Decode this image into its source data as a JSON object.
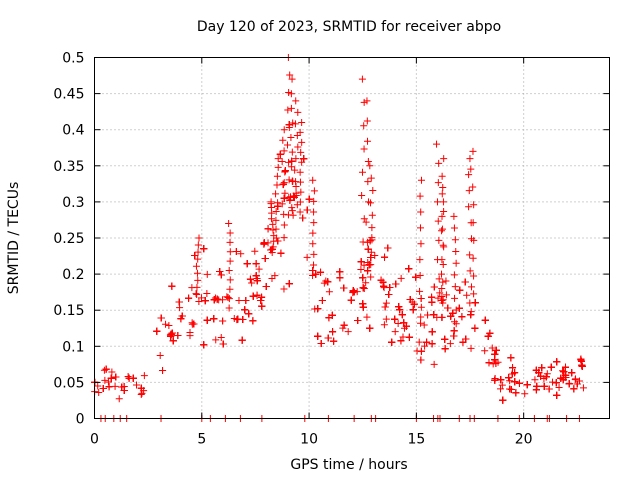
{
  "chart_data": {
    "type": "scatter",
    "title": "Day 120 of 2023, SRMTID for receiver abpo",
    "xlabel": "GPS time / hours",
    "ylabel": "SRMTID / TECUs",
    "xlim": [
      0,
      24
    ],
    "ylim": [
      0,
      0.5
    ],
    "xticks": [
      0,
      5,
      10,
      15,
      20
    ],
    "yticks": [
      0,
      0.05,
      0.1,
      0.15,
      0.2,
      0.25,
      0.3,
      0.35,
      0.4,
      0.45,
      0.5
    ],
    "ytick_labels": [
      "0",
      "0.05",
      "0.1",
      "0.15",
      "0.2",
      "0.25",
      "0.3",
      "0.35",
      "0.4",
      "0.45",
      "0.5"
    ],
    "xtick_labels": [
      "0",
      "5",
      "10",
      "15",
      "20"
    ],
    "grid": true,
    "marker": "+",
    "marker_color": "#ff0000",
    "x_data_end": 22.8,
    "series": [
      {
        "name": "SRMTID",
        "trend": [
          [
            0.0,
            0.05
          ],
          [
            1.0,
            0.045
          ],
          [
            2.0,
            0.045
          ],
          [
            2.5,
            0.06
          ],
          [
            3.0,
            0.12
          ],
          [
            4.0,
            0.13
          ],
          [
            5.0,
            0.17
          ],
          [
            6.0,
            0.15
          ],
          [
            7.0,
            0.16
          ],
          [
            8.0,
            0.2
          ],
          [
            8.5,
            0.25
          ],
          [
            9.0,
            0.28
          ],
          [
            9.5,
            0.3
          ],
          [
            10.0,
            0.23
          ],
          [
            10.5,
            0.15
          ],
          [
            11.0,
            0.16
          ],
          [
            12.0,
            0.15
          ],
          [
            12.5,
            0.18
          ],
          [
            13.0,
            0.2
          ],
          [
            13.5,
            0.19
          ],
          [
            14.0,
            0.15
          ],
          [
            15.0,
            0.14
          ],
          [
            15.5,
            0.12
          ],
          [
            16.0,
            0.14
          ],
          [
            16.5,
            0.14
          ],
          [
            17.0,
            0.13
          ],
          [
            17.5,
            0.16
          ],
          [
            18.0,
            0.1
          ],
          [
            19.0,
            0.06
          ],
          [
            20.0,
            0.055
          ],
          [
            21.0,
            0.05
          ],
          [
            22.0,
            0.055
          ],
          [
            22.8,
            0.06
          ]
        ],
        "peaks": [
          [
            8.8,
            0.4
          ],
          [
            9.05,
            0.5
          ],
          [
            9.2,
            0.47
          ],
          [
            9.4,
            0.44
          ],
          [
            9.6,
            0.41
          ],
          [
            8.5,
            0.36
          ],
          [
            10.2,
            0.33
          ],
          [
            12.5,
            0.47
          ],
          [
            12.7,
            0.44
          ],
          [
            12.9,
            0.35
          ],
          [
            15.2,
            0.33
          ],
          [
            16.0,
            0.38
          ],
          [
            16.2,
            0.36
          ],
          [
            16.8,
            0.28
          ],
          [
            17.5,
            0.36
          ],
          [
            17.6,
            0.37
          ],
          [
            16.2,
            0.32
          ],
          [
            4.8,
            0.25
          ],
          [
            6.3,
            0.27
          ],
          [
            8.3,
            0.3
          ]
        ],
        "zero_x": [
          0.3,
          0.5,
          0.9,
          1.2,
          1.5,
          3.1,
          5.0,
          5.4,
          6.1,
          6.8,
          7.8,
          9.8,
          10.9,
          12.1,
          12.9,
          13.1,
          15.0,
          15.8,
          16.0,
          16.1,
          17.0,
          17.5,
          17.7,
          18.8,
          19.8,
          20.5,
          21.1,
          21.2,
          22.0,
          22.6
        ]
      }
    ]
  }
}
